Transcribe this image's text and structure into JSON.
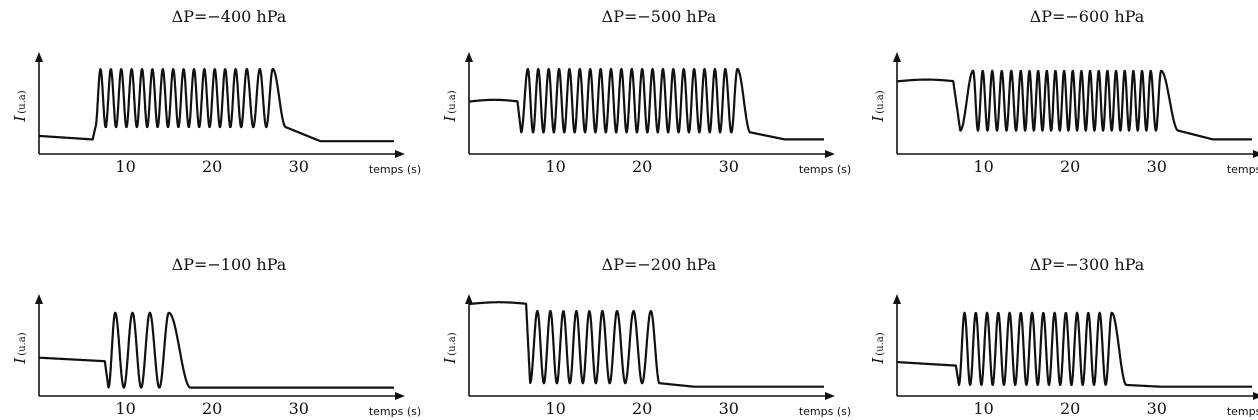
{
  "chart_data": [
    {
      "type": "line",
      "title": "ΔP=−400 hPa",
      "xlabel": "temps (s)",
      "ylabel": "I",
      "ylabel_unit": "(u.a)",
      "x_ticks": [
        10,
        20,
        30
      ],
      "xlim": [
        0,
        41
      ],
      "ylim": [
        0,
        1
      ],
      "series": [
        {
          "baseline_before": 0.12,
          "start": 6.2,
          "end": 28.5,
          "peaks": [
            7.1,
            8.3,
            9.5,
            10.7,
            11.9,
            13.1,
            14.3,
            15.5,
            16.7,
            17.9,
            19.1,
            20.3,
            21.5,
            22.7,
            24.0,
            25.5,
            27.0
          ],
          "peak_top": 0.92,
          "trough": 0.26,
          "baseline_after": 0.1
        }
      ]
    },
    {
      "type": "line",
      "title": "ΔP=−500 hPa",
      "xlabel": "temps (s)",
      "ylabel": "I",
      "ylabel_unit": "(u.a)",
      "x_ticks": [
        10,
        20,
        30
      ],
      "xlim": [
        0,
        41
      ],
      "ylim": [
        0,
        1
      ],
      "series": [
        {
          "baseline_before": 0.55,
          "start": 5.6,
          "end": 32.5,
          "peaks": [
            6.8,
            8.0,
            9.2,
            10.4,
            11.6,
            12.8,
            14.0,
            15.2,
            16.4,
            17.6,
            18.8,
            20.0,
            21.2,
            22.4,
            23.6,
            24.8,
            26.0,
            27.2,
            28.4,
            29.6,
            31.0
          ],
          "peak_top": 0.92,
          "trough": 0.2,
          "baseline_after": 0.12
        }
      ]
    },
    {
      "type": "line",
      "title": "ΔP=−600 hPa",
      "xlabel": "temps (s)",
      "ylabel": "I",
      "ylabel_unit": "(u.a)",
      "x_ticks": [
        10,
        20,
        30
      ],
      "xlim": [
        0,
        41
      ],
      "ylim": [
        0,
        1
      ],
      "series": [
        {
          "baseline_before": 0.78,
          "start": 6.5,
          "end": 32.5,
          "peaks": [
            8.8,
            9.9,
            11.0,
            12.1,
            13.2,
            14.3,
            15.3,
            16.3,
            17.3,
            18.3,
            19.3,
            20.3,
            21.3,
            22.3,
            23.3,
            24.3,
            25.3,
            26.3,
            27.3,
            28.3,
            29.3,
            30.5
          ],
          "peak_top": 0.9,
          "trough": 0.22,
          "baseline_after": 0.12
        }
      ]
    },
    {
      "type": "line",
      "title": "ΔP=−100 hPa",
      "xlabel": "temps (s)",
      "ylabel": "I",
      "ylabel_unit": "(u.a)",
      "x_ticks": [
        10,
        20,
        30
      ],
      "xlim": [
        0,
        41
      ],
      "ylim": [
        0,
        1
      ],
      "series": [
        {
          "baseline_before": 0.35,
          "start": 7.6,
          "end": 17.5,
          "peaks": [
            8.8,
            10.8,
            12.8,
            15.0
          ],
          "peak_top": 0.9,
          "trough": 0.05,
          "baseline_after": 0.05
        }
      ]
    },
    {
      "type": "line",
      "title": "ΔP=−200 hPa",
      "xlabel": "temps (s)",
      "ylabel": "I",
      "ylabel_unit": "(u.a)",
      "x_ticks": [
        10,
        20,
        30
      ],
      "xlim": [
        0,
        41
      ],
      "ylim": [
        0,
        1
      ],
      "series": [
        {
          "baseline_before": 1.0,
          "start": 6.6,
          "end": 22.0,
          "peaks": [
            7.9,
            9.4,
            10.9,
            12.4,
            13.9,
            15.4,
            17.1,
            19.0,
            21.0
          ],
          "peak_top": 0.92,
          "trough": 0.1,
          "baseline_after": 0.06
        }
      ]
    },
    {
      "type": "line",
      "title": "ΔP=−300 hPa",
      "xlabel": "temps (s)",
      "ylabel": "I",
      "ylabel_unit": "(u.a)",
      "x_ticks": [
        10,
        20,
        30
      ],
      "xlim": [
        0,
        41
      ],
      "ylim": [
        0,
        1
      ],
      "series": [
        {
          "baseline_before": 0.3,
          "start": 6.8,
          "end": 26.5,
          "peaks": [
            7.8,
            9.1,
            10.4,
            11.7,
            13.0,
            14.3,
            15.6,
            16.9,
            18.2,
            19.5,
            20.8,
            22.1,
            23.4,
            24.8
          ],
          "peak_top": 0.9,
          "trough": 0.08,
          "baseline_after": 0.06
        }
      ]
    }
  ]
}
